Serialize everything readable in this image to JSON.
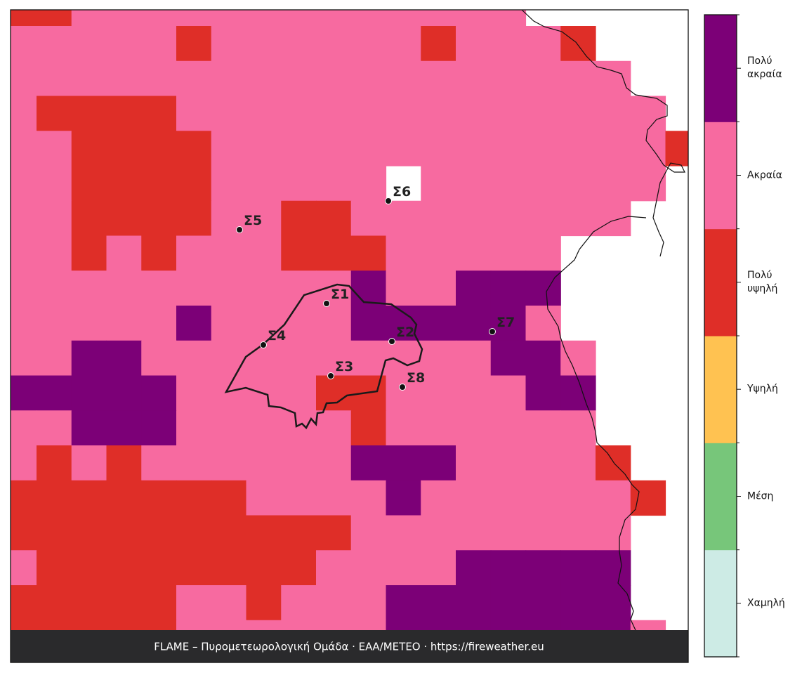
{
  "map": {
    "levels": [
      {
        "name": "Χαμηλή",
        "color": "#cdebe5"
      },
      {
        "name": "Μέση",
        "color": "#77c67a"
      },
      {
        "name": "Υψηλή",
        "color": "#ffc251"
      },
      {
        "name": "Πολύ\nυψηλή",
        "color": "#df2e28"
      },
      {
        "name": "Ακραία",
        "color": "#f76aa0"
      },
      {
        "name": "Πολύ\nακραία",
        "color": "#7c0077"
      }
    ],
    "grid": [
      [
        3,
        3,
        4,
        4,
        4,
        4,
        4,
        4,
        4,
        4,
        4,
        4,
        4,
        4,
        4,
        null,
        null,
        null,
        null,
        null
      ],
      [
        4,
        4,
        4,
        4,
        4,
        3,
        4,
        4,
        4,
        4,
        4,
        4,
        3,
        4,
        4,
        4,
        3,
        null,
        null,
        null
      ],
      [
        4,
        4,
        4,
        4,
        4,
        4,
        4,
        4,
        4,
        4,
        4,
        4,
        4,
        4,
        4,
        4,
        4,
        4,
        null,
        null
      ],
      [
        4,
        3,
        3,
        3,
        3,
        4,
        4,
        4,
        4,
        4,
        4,
        4,
        4,
        4,
        4,
        4,
        4,
        4,
        4,
        null
      ],
      [
        4,
        4,
        3,
        3,
        3,
        3,
        4,
        4,
        4,
        4,
        4,
        4,
        4,
        4,
        4,
        4,
        4,
        4,
        4,
        3
      ],
      [
        4,
        4,
        3,
        3,
        3,
        3,
        4,
        4,
        4,
        4,
        4,
        null,
        4,
        4,
        4,
        4,
        4,
        4,
        4,
        null
      ],
      [
        4,
        4,
        3,
        3,
        3,
        3,
        4,
        4,
        3,
        3,
        4,
        4,
        4,
        4,
        4,
        4,
        4,
        4,
        null,
        null
      ],
      [
        4,
        4,
        3,
        4,
        3,
        4,
        4,
        4,
        3,
        3,
        3,
        4,
        4,
        4,
        4,
        4,
        null,
        null,
        null,
        null
      ],
      [
        4,
        4,
        4,
        4,
        4,
        4,
        4,
        4,
        4,
        4,
        5,
        4,
        4,
        5,
        5,
        5,
        null,
        null,
        null,
        null
      ],
      [
        4,
        4,
        4,
        4,
        4,
        5,
        4,
        4,
        4,
        4,
        5,
        5,
        5,
        5,
        5,
        4,
        null,
        null,
        null,
        null
      ],
      [
        4,
        4,
        5,
        5,
        4,
        4,
        4,
        4,
        4,
        4,
        4,
        4,
        4,
        4,
        5,
        5,
        4,
        null,
        null,
        null
      ],
      [
        5,
        5,
        5,
        5,
        5,
        4,
        4,
        4,
        4,
        3,
        3,
        4,
        4,
        4,
        4,
        5,
        5,
        null,
        null,
        null
      ],
      [
        4,
        4,
        5,
        5,
        5,
        4,
        4,
        4,
        4,
        4,
        3,
        4,
        4,
        4,
        4,
        4,
        4,
        null,
        null,
        null
      ],
      [
        4,
        3,
        4,
        3,
        4,
        4,
        4,
        4,
        4,
        4,
        5,
        5,
        5,
        4,
        4,
        4,
        4,
        3,
        null,
        null
      ],
      [
        3,
        3,
        3,
        3,
        3,
        3,
        3,
        4,
        4,
        4,
        4,
        5,
        4,
        4,
        4,
        4,
        4,
        4,
        3,
        null
      ],
      [
        3,
        3,
        3,
        3,
        3,
        3,
        3,
        3,
        3,
        3,
        4,
        4,
        4,
        4,
        4,
        4,
        4,
        4,
        null,
        null
      ],
      [
        4,
        3,
        3,
        3,
        3,
        3,
        3,
        3,
        3,
        4,
        4,
        4,
        4,
        5,
        5,
        5,
        5,
        5,
        null,
        null
      ],
      [
        3,
        3,
        3,
        3,
        3,
        4,
        4,
        3,
        4,
        4,
        4,
        5,
        5,
        5,
        5,
        5,
        5,
        5,
        null,
        null
      ],
      [
        3,
        3,
        3,
        3,
        3,
        4,
        4,
        4,
        4,
        4,
        4,
        5,
        5,
        5,
        5,
        5,
        5,
        5,
        4,
        null
      ]
    ],
    "stations": [
      "Σ1",
      "Σ2",
      "Σ3",
      "Σ4",
      "Σ5",
      "Σ6",
      "Σ7",
      "Σ8"
    ],
    "footer": "FLAME – Πυρομετεωρολογική Ομάδα · ΕΑΑ/METEO · https://fireweather.eu"
  }
}
